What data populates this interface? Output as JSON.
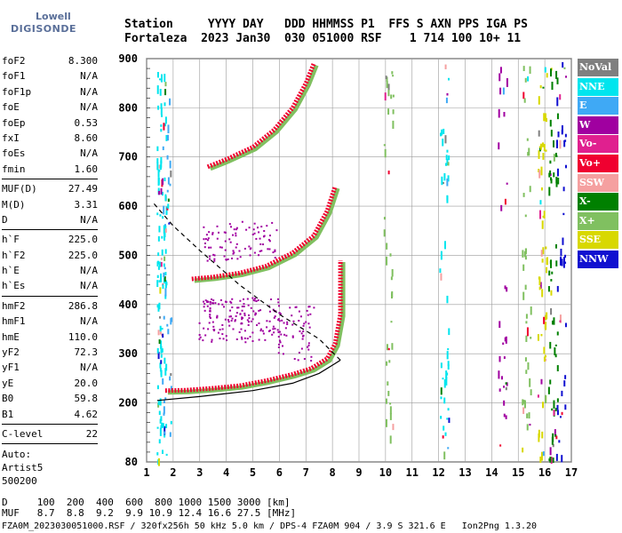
{
  "logo": {
    "line1": "Lowell",
    "line2": "DIGISONDE"
  },
  "header": {
    "line1": "Station     YYYY DAY   DDD HHMMSS P1  FFS S AXN PPS IGA PS",
    "line2": "Fortaleza  2023 Jan30  030 051000 RSF    1 714 100 10+ 11"
  },
  "params": {
    "group1": [
      {
        "k": "foF2",
        "v": "8.300"
      },
      {
        "k": "foF1",
        "v": "N/A"
      },
      {
        "k": "foF1p",
        "v": "N/A"
      },
      {
        "k": "foE",
        "v": "N/A"
      },
      {
        "k": "foEp",
        "v": "0.53"
      },
      {
        "k": "fxI",
        "v": "8.60"
      },
      {
        "k": "foEs",
        "v": "N/A"
      },
      {
        "k": "fmin",
        "v": "1.60"
      }
    ],
    "group2": [
      {
        "k": "MUF(D)",
        "v": "27.49"
      },
      {
        "k": "M(D)",
        "v": "3.31"
      },
      {
        "k": "D",
        "v": "N/A"
      }
    ],
    "group3": [
      {
        "k": "h`F",
        "v": "225.0"
      },
      {
        "k": "h`F2",
        "v": "225.0"
      },
      {
        "k": "h`E",
        "v": "N/A"
      },
      {
        "k": "h`Es",
        "v": "N/A"
      }
    ],
    "group4": [
      {
        "k": "hmF2",
        "v": "286.8"
      },
      {
        "k": "hmF1",
        "v": "N/A"
      },
      {
        "k": "hmE",
        "v": "110.0"
      },
      {
        "k": "yF2",
        "v": "72.3"
      },
      {
        "k": "yF1",
        "v": "N/A"
      },
      {
        "k": "yE",
        "v": "20.0"
      },
      {
        "k": "B0",
        "v": "59.8"
      },
      {
        "k": "B1",
        "v": "4.62"
      }
    ],
    "group5": [
      {
        "k": "C-level",
        "v": "22"
      }
    ],
    "auto": [
      "Auto:",
      "Artist5",
      "500200"
    ]
  },
  "footer": {
    "line1": "D     100  200  400  600  800 1000 1500 3000 [km]",
    "line2": "MUF   8.7  8.8  9.2  9.9 10.9 12.4 16.6 27.5 [MHz]",
    "line3": "FZA0M_2023030051000.RSF / 320fx256h 50 kHz 5.0 km / DPS-4 FZA0M 904 / 3.9 S 321.6 E   Ion2Png 1.3.20"
  },
  "legend": [
    {
      "label": "NoVal",
      "color": "#7f7f7f"
    },
    {
      "label": "NNE",
      "color": "#00e5ee"
    },
    {
      "label": "E",
      "color": "#3fa9f5"
    },
    {
      "label": "W",
      "color": "#a000a0"
    },
    {
      "label": "Vo-",
      "color": "#e0208f"
    },
    {
      "label": "Vo+",
      "color": "#f00030"
    },
    {
      "label": "SSW",
      "color": "#f5a0a0"
    },
    {
      "label": "X-",
      "color": "#008000"
    },
    {
      "label": "X+",
      "color": "#80c060"
    },
    {
      "label": "SSE",
      "color": "#d8d800"
    },
    {
      "label": "NNW",
      "color": "#1010d0"
    }
  ],
  "chart_data": {
    "type": "scatter",
    "title": "",
    "xlabel": "",
    "ylabel": "",
    "xlim": [
      1,
      17
    ],
    "ylim": [
      80,
      900
    ],
    "xticks": [
      1,
      2,
      3,
      4,
      5,
      6,
      7,
      8,
      9,
      10,
      11,
      12,
      13,
      14,
      15,
      16,
      17
    ],
    "yticks": [
      80,
      200,
      300,
      400,
      500,
      600,
      700,
      800,
      900
    ],
    "grid": true,
    "legend_position": "right",
    "traces": [
      {
        "name": "O-trace F2 (1st hop)",
        "color": "#f00030",
        "points": [
          [
            1.7,
            225
          ],
          [
            2.5,
            226
          ],
          [
            3.5,
            230
          ],
          [
            4.5,
            235
          ],
          [
            5.5,
            245
          ],
          [
            6.5,
            258
          ],
          [
            7.2,
            270
          ],
          [
            7.8,
            290
          ],
          [
            8.1,
            320
          ],
          [
            8.3,
            380
          ],
          [
            8.3,
            490
          ]
        ]
      },
      {
        "name": "O-trace F2 (2nd hop)",
        "color": "#f00030",
        "points": [
          [
            2.7,
            452
          ],
          [
            3.5,
            456
          ],
          [
            4.5,
            464
          ],
          [
            5.5,
            478
          ],
          [
            6.5,
            505
          ],
          [
            7.3,
            540
          ],
          [
            7.8,
            590
          ],
          [
            8.1,
            640
          ]
        ]
      },
      {
        "name": "O-trace F2 (3rd hop)",
        "color": "#f00030",
        "points": [
          [
            3.3,
            680
          ],
          [
            4,
            695
          ],
          [
            5,
            720
          ],
          [
            5.8,
            755
          ],
          [
            6.5,
            800
          ],
          [
            7,
            850
          ],
          [
            7.3,
            890
          ]
        ]
      },
      {
        "name": "profile",
        "color": "#000000",
        "points": [
          [
            1.4,
            205
          ],
          [
            3,
            213
          ],
          [
            5,
            225
          ],
          [
            6.5,
            240
          ],
          [
            7.5,
            260
          ],
          [
            8.1,
            280
          ],
          [
            8.3,
            287
          ]
        ]
      },
      {
        "name": "profile-topside",
        "color": "#000000",
        "dashed": true,
        "points": [
          [
            8.3,
            287
          ],
          [
            7.5,
            330
          ],
          [
            6,
            380
          ],
          [
            4.5,
            440
          ],
          [
            3,
            510
          ],
          [
            2,
            560
          ],
          [
            1.2,
            610
          ]
        ]
      }
    ]
  }
}
